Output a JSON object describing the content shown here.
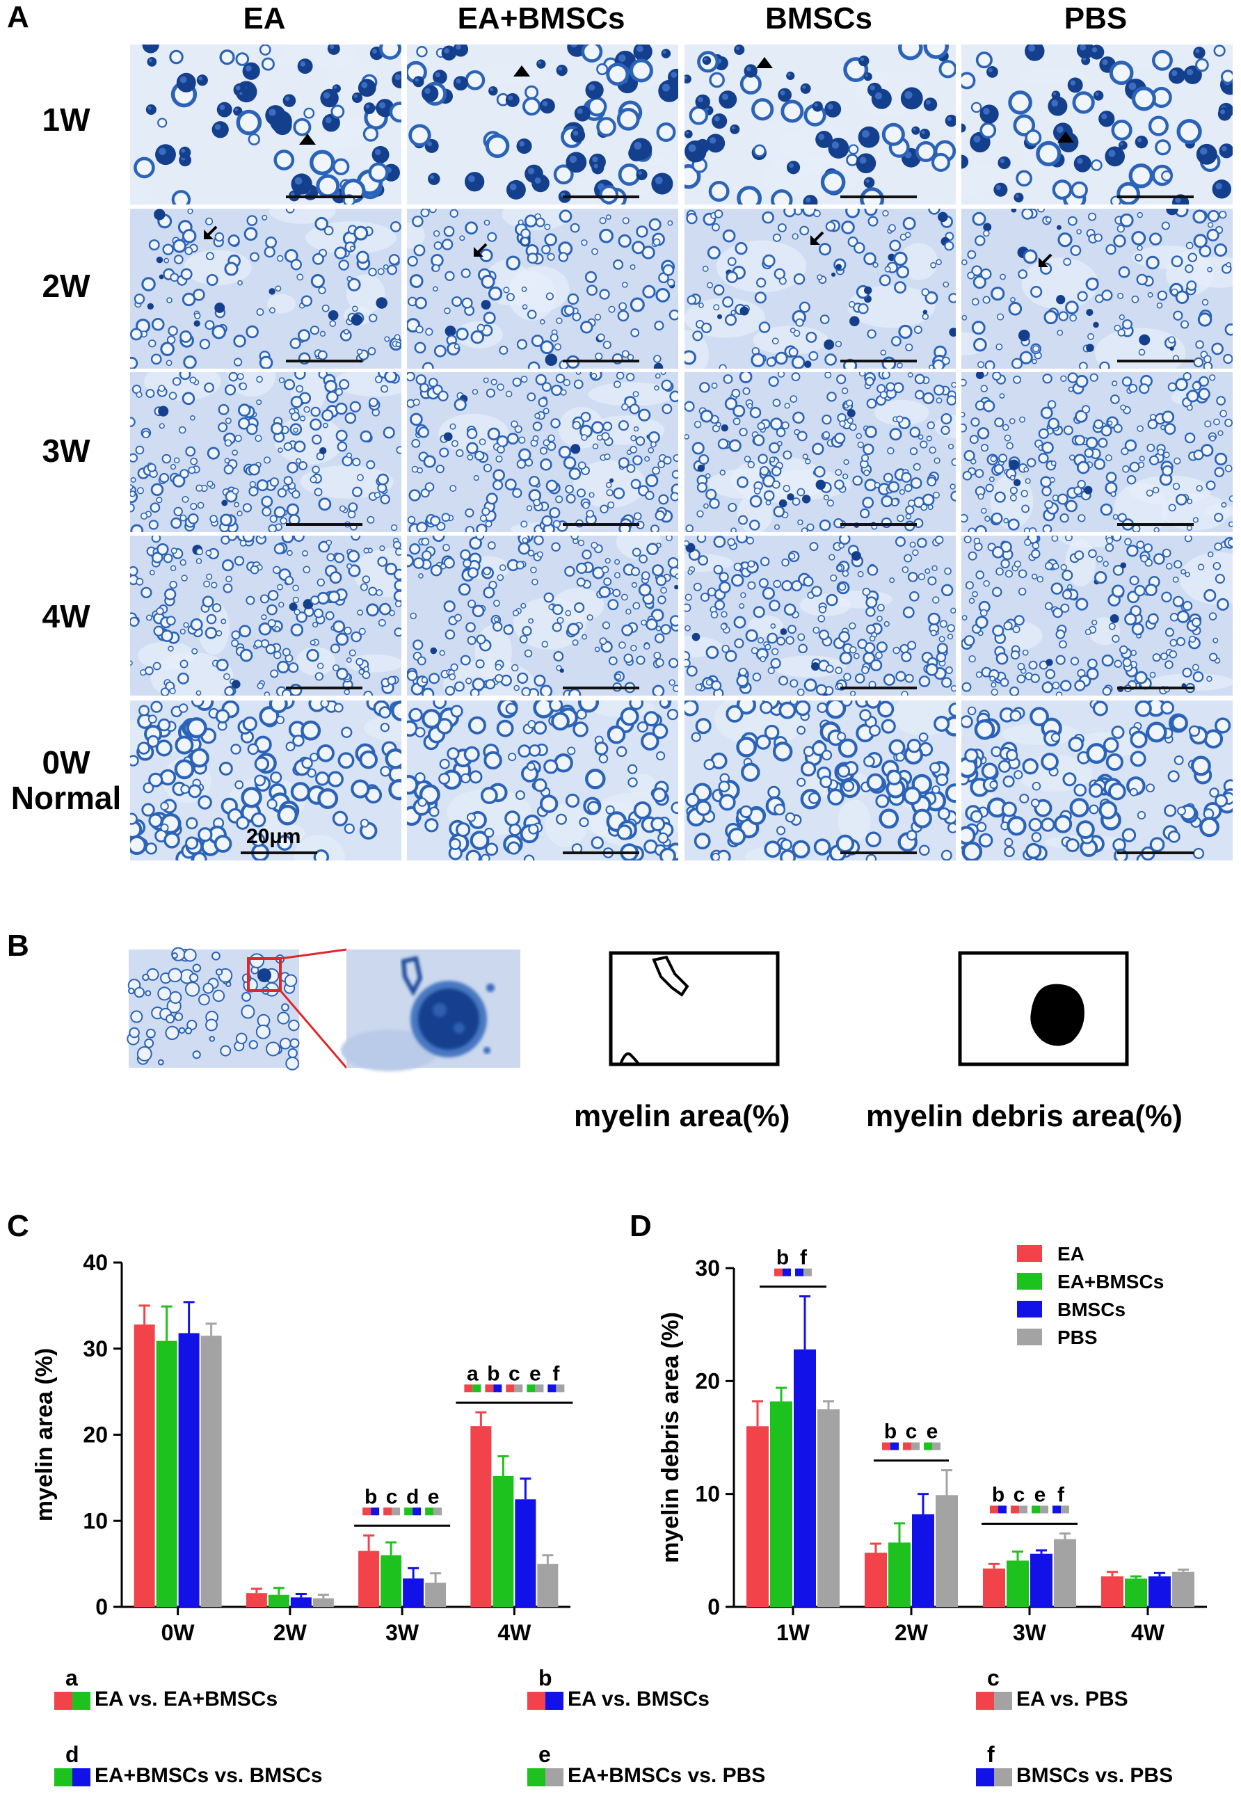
{
  "panel_labels": {
    "A": "A",
    "B": "B",
    "C": "C",
    "D": "D"
  },
  "panelA": {
    "columns": [
      "EA",
      "EA+BMSCs",
      "BMSCs",
      "PBS"
    ],
    "rows": [
      "1W",
      "2W",
      "3W",
      "4W",
      "0W"
    ],
    "row5_sub": "Normal",
    "scale_bar": "20μm",
    "stain_colors": {
      "background": "#cfdcf2",
      "axon_ring": "#2a63b8",
      "dark_debris": "#133f8c",
      "light_tissue": "#e6eef9"
    }
  },
  "panelB": {
    "caption_myelin": "myelin area(%)",
    "caption_debris": "myelin debris area(%)",
    "zoom_box_color": "#e0262a"
  },
  "colors": {
    "EA": "#f2434a",
    "EA+BMSCs": "#1ec21e",
    "BMSCs": "#1212e8",
    "PBS": "#a3a3a3"
  },
  "chart_data": [
    {
      "type": "bar",
      "panel": "C",
      "categories": [
        "0W",
        "2W",
        "3W",
        "4W"
      ],
      "ylabel": "myelin area (%)",
      "xlabel": "",
      "ylim": [
        0,
        40
      ],
      "yticks": [
        0,
        10,
        20,
        30,
        40
      ],
      "series": [
        {
          "name": "EA",
          "values": [
            32.8,
            1.6,
            6.5,
            21.0
          ],
          "errors": [
            2.2,
            0.5,
            1.8,
            1.6
          ]
        },
        {
          "name": "EA+BMSCs",
          "values": [
            30.9,
            1.4,
            6.0,
            15.2
          ],
          "errors": [
            4.0,
            0.8,
            1.5,
            2.3
          ]
        },
        {
          "name": "BMSCs",
          "values": [
            31.8,
            1.1,
            3.3,
            12.5
          ],
          "errors": [
            3.6,
            0.4,
            1.2,
            2.4
          ]
        },
        {
          "name": "PBS",
          "values": [
            31.5,
            1.0,
            2.8,
            5.0
          ],
          "errors": [
            1.4,
            0.4,
            1.1,
            1.0
          ]
        }
      ],
      "annotations": [
        {
          "category": "3W",
          "letters": [
            "b",
            "c",
            "d",
            "e"
          ]
        },
        {
          "category": "4W",
          "letters": [
            "a",
            "b",
            "c",
            "e",
            "f"
          ]
        }
      ]
    },
    {
      "type": "bar",
      "panel": "D",
      "categories": [
        "1W",
        "2W",
        "3W",
        "4W"
      ],
      "ylabel": "myelin debris area (%)",
      "xlabel": "",
      "ylim": [
        0,
        30
      ],
      "yticks": [
        0,
        10,
        20,
        30
      ],
      "legend": "top-right",
      "series": [
        {
          "name": "EA",
          "values": [
            16.0,
            4.8,
            3.4,
            2.7
          ],
          "errors": [
            2.2,
            0.8,
            0.4,
            0.4
          ]
        },
        {
          "name": "EA+BMSCs",
          "values": [
            18.2,
            5.7,
            4.1,
            2.5
          ],
          "errors": [
            1.2,
            1.7,
            0.8,
            0.2
          ]
        },
        {
          "name": "BMSCs",
          "values": [
            22.8,
            8.2,
            4.7,
            2.7
          ],
          "errors": [
            4.7,
            1.8,
            0.3,
            0.3
          ]
        },
        {
          "name": "PBS",
          "values": [
            17.5,
            9.9,
            6.0,
            3.1
          ],
          "errors": [
            0.7,
            2.2,
            0.5,
            0.2
          ]
        }
      ],
      "annotations": [
        {
          "category": "1W",
          "letters": [
            "b",
            "f"
          ]
        },
        {
          "category": "2W",
          "letters": [
            "b",
            "c",
            "e"
          ]
        },
        {
          "category": "3W",
          "letters": [
            "b",
            "c",
            "e",
            "f"
          ]
        }
      ]
    }
  ],
  "comparisons": [
    {
      "letter": "a",
      "text": "EA vs. EA+BMSCs",
      "c1": "#f2434a",
      "c2": "#1ec21e"
    },
    {
      "letter": "b",
      "text": "EA vs. BMSCs",
      "c1": "#f2434a",
      "c2": "#1212e8"
    },
    {
      "letter": "c",
      "text": "EA vs. PBS",
      "c1": "#f2434a",
      "c2": "#a3a3a3"
    },
    {
      "letter": "d",
      "text": "EA+BMSCs vs. BMSCs",
      "c1": "#1ec21e",
      "c2": "#1212e8"
    },
    {
      "letter": "e",
      "text": "EA+BMSCs vs. PBS",
      "c1": "#1ec21e",
      "c2": "#a3a3a3"
    },
    {
      "letter": "f",
      "text": "BMSCs vs. PBS",
      "c1": "#1212e8",
      "c2": "#a3a3a3"
    }
  ]
}
